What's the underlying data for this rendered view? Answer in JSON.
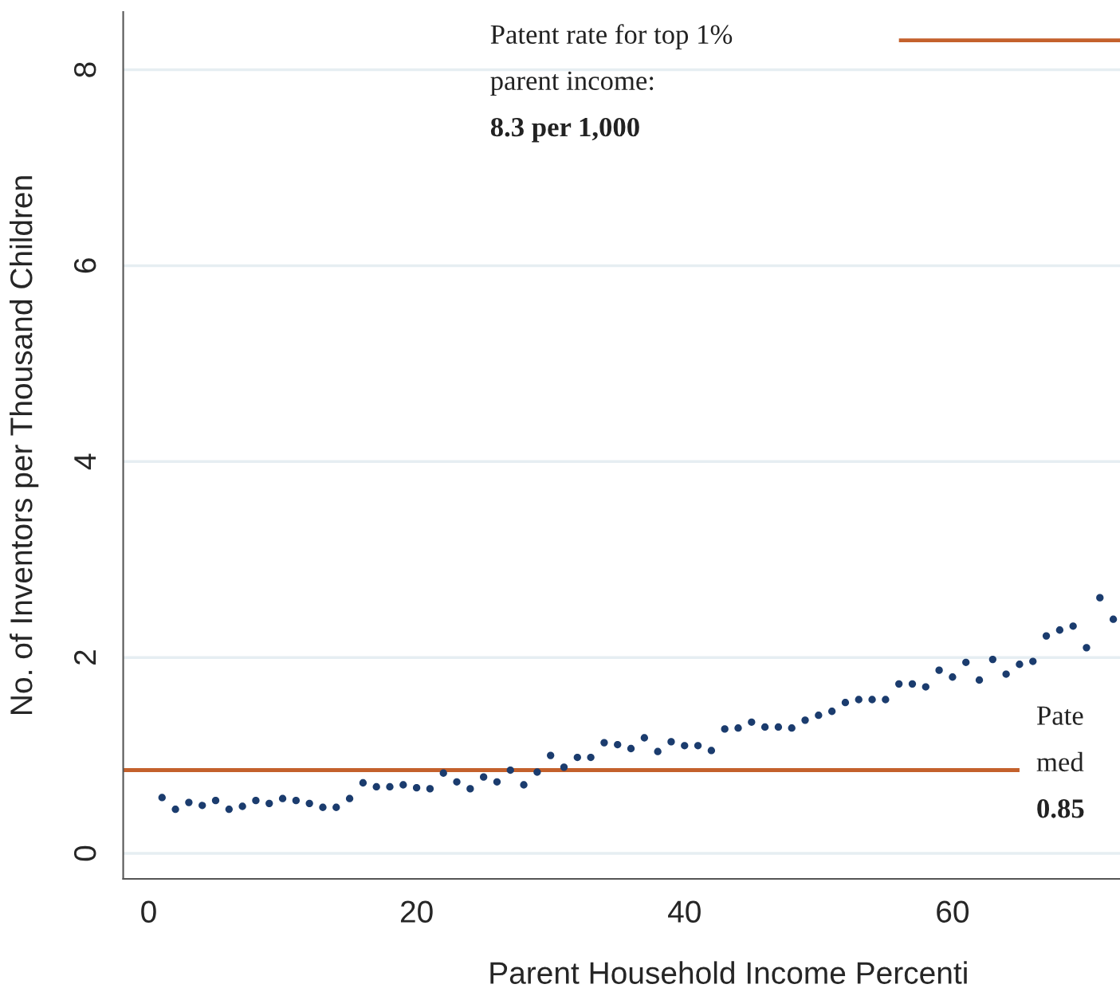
{
  "chart_data": {
    "type": "scatter",
    "xlabel": "Parent Household Income Percenti",
    "ylabel": "No. of Inventors per Thousand Children",
    "xlim": [
      -1.9,
      72.5
    ],
    "ylim": [
      -0.26,
      8.59
    ],
    "xticks": [
      0,
      20,
      40,
      60
    ],
    "yticks": [
      0,
      2,
      4,
      6,
      8
    ],
    "grid": "y",
    "series": [
      {
        "marker": "circle",
        "color": "#1b3c6e",
        "x": [
          1,
          2,
          3,
          4,
          5,
          6,
          7,
          8,
          9,
          10,
          11,
          12,
          13,
          14,
          15,
          16,
          17,
          18,
          19,
          20,
          21,
          22,
          23,
          24,
          25,
          26,
          27,
          28,
          29,
          30,
          31,
          32,
          33,
          34,
          35,
          36,
          37,
          38,
          39,
          40,
          41,
          42,
          43,
          44,
          45,
          46,
          47,
          48,
          49,
          50,
          51,
          52,
          53,
          54,
          55,
          56,
          57,
          58,
          59,
          60,
          61,
          62,
          63,
          64,
          65,
          66,
          67,
          68,
          69,
          70,
          71,
          72
        ],
        "values": [
          0.57,
          0.45,
          0.52,
          0.49,
          0.54,
          0.45,
          0.48,
          0.54,
          0.51,
          0.56,
          0.54,
          0.51,
          0.47,
          0.47,
          0.56,
          0.72,
          0.68,
          0.68,
          0.7,
          0.67,
          0.66,
          0.82,
          0.73,
          0.66,
          0.78,
          0.73,
          0.85,
          0.7,
          0.83,
          1.0,
          0.88,
          0.98,
          0.98,
          1.13,
          1.11,
          1.07,
          1.18,
          1.04,
          1.14,
          1.1,
          1.1,
          1.05,
          1.27,
          1.28,
          1.34,
          1.29,
          1.29,
          1.28,
          1.36,
          1.41,
          1.45,
          1.54,
          1.57,
          1.57,
          1.57,
          1.73,
          1.73,
          1.7,
          1.87,
          1.8,
          1.95,
          1.77,
          1.98,
          1.83,
          1.93,
          1.96,
          2.22,
          2.28,
          2.32,
          2.1,
          2.61,
          2.39
        ]
      },
      {
        "type": "line",
        "color": "#c4612c",
        "x": [
          56,
          72.5
        ],
        "values": [
          8.3,
          8.3
        ]
      },
      {
        "type": "line",
        "color": "#c4612c",
        "x": [
          -1.9,
          65
        ],
        "values": [
          0.85,
          0.85
        ]
      }
    ],
    "annotations": [
      "Patent rate for top 1%\nparent income:\n8.3 per 1,000",
      "Pate\nmed\n0.85"
    ]
  }
}
